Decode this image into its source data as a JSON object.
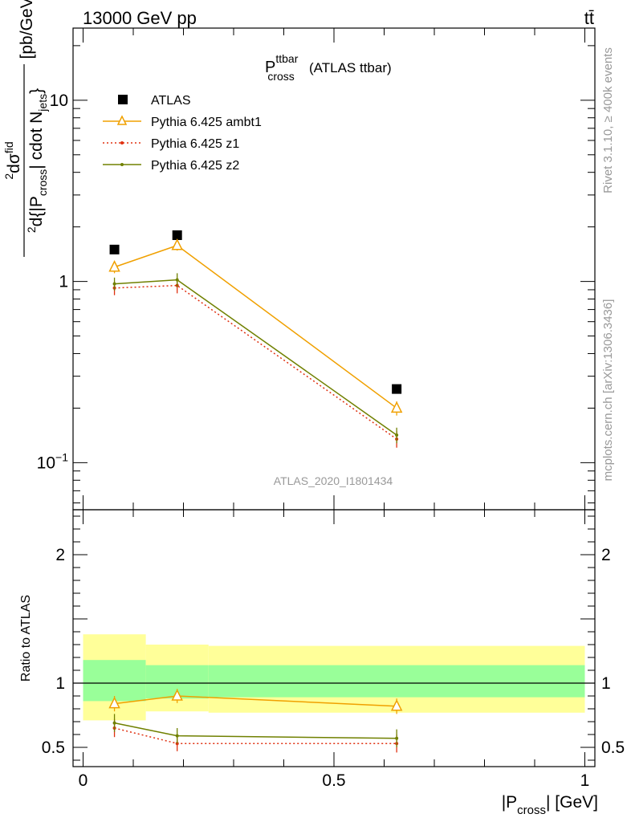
{
  "header": {
    "energy_label": "13000 GeV pp",
    "process_label": "tt̄"
  },
  "side_texts": {
    "rivet": "Rivet 3.1.10, ≥ 400k events",
    "mcplots": "mcplots.cern.ch [arXiv:1306.3436]"
  },
  "chart_data": [
    {
      "type": "line",
      "panel": "main",
      "title": "P",
      "title_sup": "ttbar",
      "title_sub": "cross",
      "title_suffix": "(ATLAS ttbar)",
      "ylabel": "d²σ^fid / d²{|P_cross| cdot N_jets} [pb/GeV]",
      "ylabel_parts": {
        "num_sup": "2",
        "num_main": "d",
        "num_sym": "σ",
        "num_sup2": "fid",
        "den_sup": "2",
        "den_main": "d",
        "den_brace": "{|P",
        "den_sub": "cross",
        "den_mid": "| cdot N",
        "den_sub2": "jets",
        "den_end": "}",
        "unit": "[pb/GeV]"
      },
      "yscale": "log",
      "ylim": [
        0.055,
        25
      ],
      "yticks": [
        {
          "value": 10,
          "label": "10"
        },
        {
          "value": 1,
          "label": "1"
        },
        {
          "value": 0.1,
          "label": "10",
          "sup": "−1"
        }
      ],
      "xlim": [
        -0.02,
        1.02
      ],
      "watermark": "ATLAS_2020_I1801434",
      "legend_position": "top-left",
      "series": [
        {
          "name": "ATLAS",
          "style": "data",
          "color": "#000000",
          "x": [
            0.0625,
            0.1875,
            0.625
          ],
          "y": [
            1.5,
            1.8,
            0.255
          ],
          "yerr": [
            0,
            0,
            0
          ]
        },
        {
          "name": "Pythia 6.425 ambt1",
          "style": "triangle",
          "color": "#f0a000",
          "x": [
            0.0625,
            0.1875,
            0.625
          ],
          "y": [
            1.2,
            1.58,
            0.2
          ],
          "yerr": [
            0.09,
            0.1,
            0.018
          ]
        },
        {
          "name": "Pythia 6.425 z1",
          "style": "dotted",
          "color": "#e03010",
          "x": [
            0.0625,
            0.1875,
            0.625
          ],
          "y": [
            0.92,
            0.95,
            0.135
          ],
          "yerr": [
            0.08,
            0.09,
            0.014
          ]
        },
        {
          "name": "Pythia 6.425 z2",
          "style": "solid-dot",
          "color": "#708000",
          "x": [
            0.0625,
            0.1875,
            0.625
          ],
          "y": [
            0.97,
            1.02,
            0.142
          ],
          "yerr": [
            0.08,
            0.09,
            0.014
          ]
        }
      ]
    },
    {
      "type": "line",
      "panel": "ratio",
      "ylabel": "Ratio to ATLAS",
      "xlabel": "|P",
      "xlabel_sub": "cross",
      "xlabel_suffix": "| [GeV]",
      "ylim": [
        0.35,
        2.35
      ],
      "yticks": [
        {
          "value": 0.5,
          "label": "0.5"
        },
        {
          "value": 1,
          "label": "1"
        },
        {
          "value": 2,
          "label": "2"
        }
      ],
      "xlim": [
        -0.02,
        1.02
      ],
      "xticks": [
        {
          "value": 0,
          "label": "0"
        },
        {
          "value": 0.5,
          "label": "0.5"
        },
        {
          "value": 1,
          "label": "1"
        }
      ],
      "bands": [
        {
          "x0": 0.0,
          "x1": 0.125,
          "stat": [
            0.86,
            1.18
          ],
          "total": [
            0.71,
            1.38
          ]
        },
        {
          "x0": 0.125,
          "x1": 0.25,
          "stat": [
            0.88,
            1.14
          ],
          "total": [
            0.78,
            1.3
          ]
        },
        {
          "x0": 0.25,
          "x1": 1.0,
          "stat": [
            0.89,
            1.14
          ],
          "total": [
            0.77,
            1.29
          ]
        }
      ],
      "band_colors": {
        "total": "#ffff99",
        "stat": "#99ff99"
      },
      "series": [
        {
          "name": "Pythia 6.425 ambt1",
          "style": "triangle",
          "color": "#f0a000",
          "x": [
            0.0625,
            0.1875,
            0.625
          ],
          "y": [
            0.84,
            0.9,
            0.82
          ],
          "yerr": [
            0.06,
            0.055,
            0.06
          ]
        },
        {
          "name": "Pythia 6.425 z1",
          "style": "dotted",
          "color": "#e03010",
          "x": [
            0.0625,
            0.1875,
            0.625
          ],
          "y": [
            0.65,
            0.53,
            0.53
          ],
          "yerr": [
            0.07,
            0.06,
            0.07
          ]
        },
        {
          "name": "Pythia 6.425 z2",
          "style": "solid-dot",
          "color": "#708000",
          "x": [
            0.0625,
            0.1875,
            0.625
          ],
          "y": [
            0.69,
            0.59,
            0.57
          ],
          "yerr": [
            0.07,
            0.06,
            0.07
          ]
        }
      ]
    }
  ]
}
